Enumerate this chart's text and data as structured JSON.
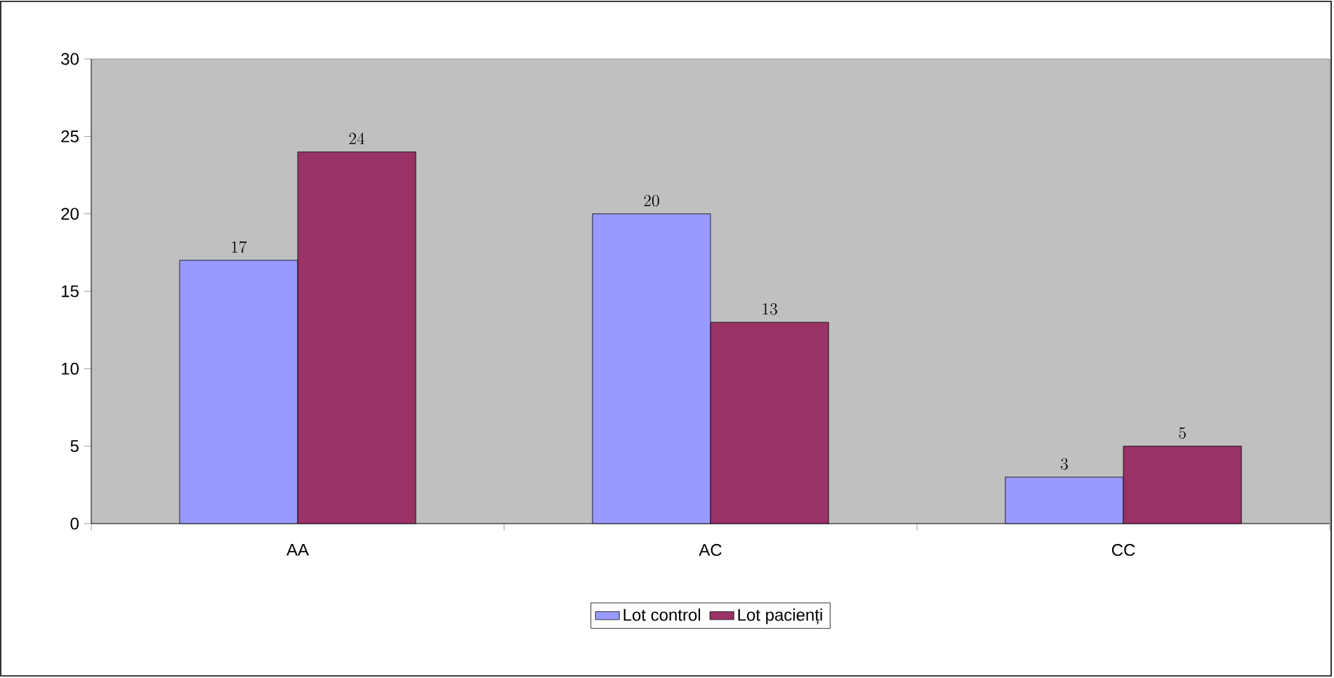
{
  "chart_data": {
    "type": "bar",
    "categories": [
      "AA",
      "AC",
      "CC"
    ],
    "series": [
      {
        "name": "Lot control",
        "color": "#9999ff",
        "values": [
          17,
          20,
          3
        ]
      },
      {
        "name": "Lot pacienți",
        "color": "#993366",
        "values": [
          24,
          13,
          5
        ]
      }
    ],
    "ylim": [
      0,
      30
    ],
    "yticks": [
      0,
      5,
      10,
      15,
      20,
      25,
      30
    ],
    "data_labels": true,
    "legend": "bottom"
  }
}
